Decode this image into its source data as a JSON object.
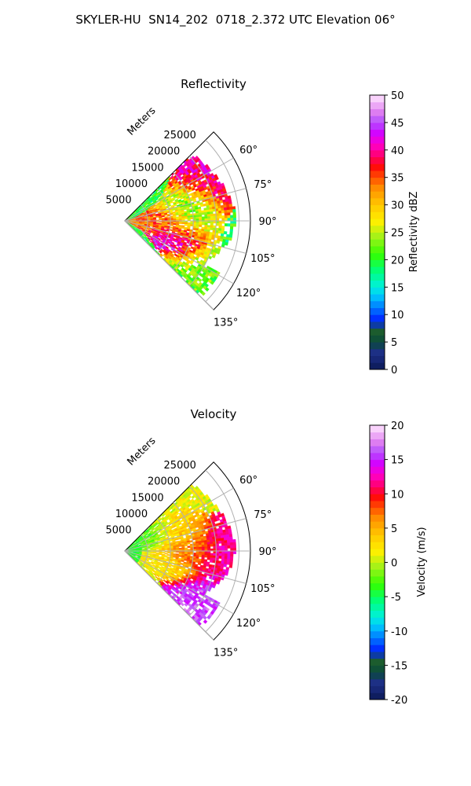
{
  "figure_title": "SKYLER-HU  SN14_202  0718_2.372 UTC Elevation 06°",
  "chart_data": [
    {
      "type": "polar-sector",
      "title": "Reflectivity",
      "radial_label": "Meters",
      "radial_ticks": [
        "5000",
        "10000",
        "15000",
        "20000",
        "25000"
      ],
      "radial_tick_values": [
        5000,
        10000,
        15000,
        20000,
        25000
      ],
      "rmax": 27500,
      "angle_ticks": [
        "60°",
        "75°",
        "90°",
        "105°",
        "120°",
        "135°"
      ],
      "angle_tick_values": [
        60,
        75,
        90,
        105,
        120,
        135
      ],
      "theta_range": [
        45,
        135
      ],
      "colorbar": {
        "label": "Reflectivity dBZ",
        "range": [
          0,
          50
        ],
        "tick_labels": [
          "0",
          "5",
          "10",
          "15",
          "20",
          "25",
          "30",
          "35",
          "40",
          "45",
          "50"
        ]
      },
      "echo_cells": [
        {
          "az": 78,
          "r": 14000,
          "value": 20
        },
        {
          "az": 90,
          "r": 13000,
          "value": 22
        },
        {
          "az": 88,
          "r": 9000,
          "value": 40
        },
        {
          "az": 100,
          "r": 11000,
          "value": 35
        },
        {
          "az": 108,
          "r": 12000,
          "value": 44
        },
        {
          "az": 65,
          "r": 19000,
          "value": 40
        },
        {
          "az": 95,
          "r": 5000,
          "value": 32
        },
        {
          "az": 128,
          "r": 19000,
          "value": 22
        }
      ]
    },
    {
      "type": "polar-sector",
      "title": "Velocity",
      "radial_label": "Meters",
      "radial_ticks": [
        "5000",
        "10000",
        "15000",
        "20000",
        "25000"
      ],
      "radial_tick_values": [
        5000,
        10000,
        15000,
        20000,
        25000
      ],
      "rmax": 27500,
      "angle_ticks": [
        "60°",
        "75°",
        "90°",
        "105°",
        "120°",
        "135°"
      ],
      "angle_tick_values": [
        60,
        75,
        90,
        105,
        120,
        135
      ],
      "theta_range": [
        45,
        135
      ],
      "colorbar": {
        "label": "Velocity (m/s)",
        "range": [
          -20,
          20
        ],
        "tick_labels": [
          "-20",
          "-15",
          "-10",
          "-5",
          "0",
          "5",
          "10",
          "15",
          "20"
        ]
      },
      "echo_cells": [
        {
          "az": 75,
          "r": 12000,
          "value": 3
        },
        {
          "az": 90,
          "r": 14000,
          "value": 8
        },
        {
          "az": 92,
          "r": 22000,
          "value": 12
        },
        {
          "az": 105,
          "r": 9000,
          "value": 2
        },
        {
          "az": 130,
          "r": 19000,
          "value": 16
        },
        {
          "az": 70,
          "r": 5000,
          "value": -3
        }
      ]
    }
  ]
}
